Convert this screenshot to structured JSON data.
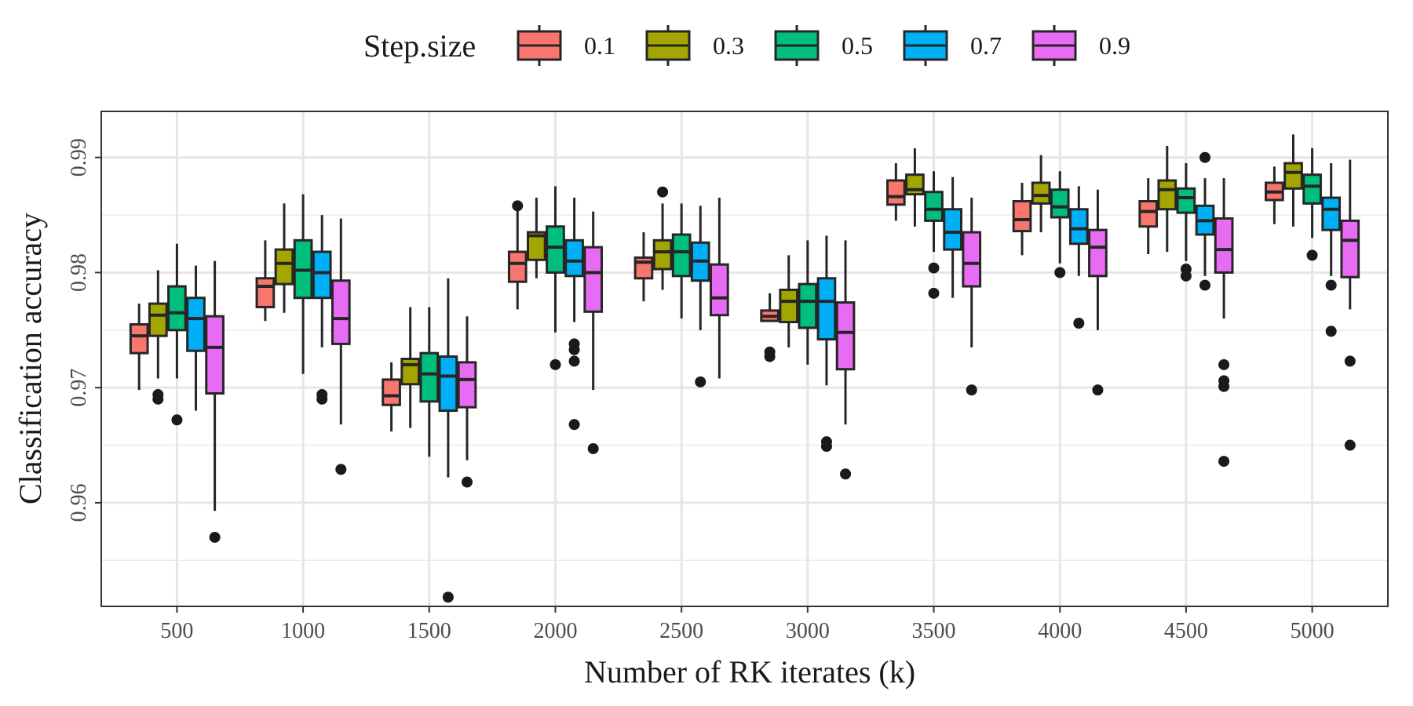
{
  "chart_data": {
    "type": "boxplot",
    "title": "",
    "xlabel": "Number of RK iterates (k)",
    "ylabel": "Classification accuracy",
    "ylim": [
      0.951,
      0.994
    ],
    "yticks": [
      0.96,
      0.97,
      0.98,
      0.99
    ],
    "ytick_labels": [
      "0.96",
      "0.97",
      "0.98",
      "0.99"
    ],
    "categories": [
      "500",
      "1000",
      "1500",
      "2000",
      "2500",
      "3000",
      "3500",
      "4000",
      "4500",
      "5000"
    ],
    "grid": true,
    "legend": {
      "title": "Step.size",
      "position": "top",
      "entries": [
        {
          "name": "0.1",
          "color": "#F8766D"
        },
        {
          "name": "0.3",
          "color": "#A3A500"
        },
        {
          "name": "0.5",
          "color": "#00BF7D"
        },
        {
          "name": "0.7",
          "color": "#00B0F6"
        },
        {
          "name": "0.9",
          "color": "#E76BF3"
        }
      ]
    },
    "series": [
      {
        "name": "0.1",
        "color": "#F8766D",
        "boxes": [
          {
            "lw": 0.9698,
            "q1": 0.973,
            "med": 0.9745,
            "q3": 0.9755,
            "uw": 0.9773,
            "outliers": []
          },
          {
            "lw": 0.9758,
            "q1": 0.977,
            "med": 0.9788,
            "q3": 0.9795,
            "uw": 0.9828,
            "outliers": []
          },
          {
            "lw": 0.9662,
            "q1": 0.9685,
            "med": 0.9693,
            "q3": 0.9707,
            "uw": 0.9722,
            "outliers": []
          },
          {
            "lw": 0.9768,
            "q1": 0.9792,
            "med": 0.9808,
            "q3": 0.9818,
            "uw": 0.9855,
            "outliers": [
              0.9858
            ]
          },
          {
            "lw": 0.9775,
            "q1": 0.9795,
            "med": 0.9809,
            "q3": 0.9813,
            "uw": 0.9835,
            "outliers": []
          },
          {
            "lw": 0.9757,
            "q1": 0.9758,
            "med": 0.9762,
            "q3": 0.9767,
            "uw": 0.9782,
            "outliers": [
              0.9727,
              0.9731
            ]
          },
          {
            "lw": 0.9845,
            "q1": 0.9859,
            "med": 0.9866,
            "q3": 0.988,
            "uw": 0.9895,
            "outliers": []
          },
          {
            "lw": 0.9815,
            "q1": 0.9836,
            "med": 0.9846,
            "q3": 0.9862,
            "uw": 0.9878,
            "outliers": []
          },
          {
            "lw": 0.9816,
            "q1": 0.984,
            "med": 0.9853,
            "q3": 0.9862,
            "uw": 0.9882,
            "outliers": []
          },
          {
            "lw": 0.9842,
            "q1": 0.9863,
            "med": 0.987,
            "q3": 0.9878,
            "uw": 0.9892,
            "outliers": []
          }
        ]
      },
      {
        "name": "0.3",
        "color": "#A3A500",
        "boxes": [
          {
            "lw": 0.9708,
            "q1": 0.9745,
            "med": 0.9763,
            "q3": 0.9773,
            "uw": 0.9802,
            "outliers": [
              0.969,
              0.9694
            ]
          },
          {
            "lw": 0.9765,
            "q1": 0.979,
            "med": 0.9808,
            "q3": 0.982,
            "uw": 0.986,
            "outliers": []
          },
          {
            "lw": 0.9665,
            "q1": 0.9703,
            "med": 0.972,
            "q3": 0.9725,
            "uw": 0.977,
            "outliers": []
          },
          {
            "lw": 0.9795,
            "q1": 0.9811,
            "med": 0.9832,
            "q3": 0.9835,
            "uw": 0.9865,
            "outliers": []
          },
          {
            "lw": 0.9785,
            "q1": 0.9803,
            "med": 0.9818,
            "q3": 0.9828,
            "uw": 0.986,
            "outliers": [
              0.987
            ]
          },
          {
            "lw": 0.9735,
            "q1": 0.9757,
            "med": 0.9775,
            "q3": 0.9785,
            "uw": 0.9815,
            "outliers": []
          },
          {
            "lw": 0.984,
            "q1": 0.9868,
            "med": 0.9872,
            "q3": 0.9885,
            "uw": 0.9908,
            "outliers": []
          },
          {
            "lw": 0.9835,
            "q1": 0.986,
            "med": 0.9867,
            "q3": 0.9878,
            "uw": 0.9902,
            "outliers": []
          },
          {
            "lw": 0.9818,
            "q1": 0.9855,
            "med": 0.9872,
            "q3": 0.988,
            "uw": 0.991,
            "outliers": []
          },
          {
            "lw": 0.984,
            "q1": 0.9873,
            "med": 0.9887,
            "q3": 0.9895,
            "uw": 0.992,
            "outliers": []
          }
        ]
      },
      {
        "name": "0.5",
        "color": "#00BF7D",
        "boxes": [
          {
            "lw": 0.9708,
            "q1": 0.975,
            "med": 0.9765,
            "q3": 0.9788,
            "uw": 0.9825,
            "outliers": [
              0.9672
            ]
          },
          {
            "lw": 0.9712,
            "q1": 0.9778,
            "med": 0.9802,
            "q3": 0.9828,
            "uw": 0.9868,
            "outliers": []
          },
          {
            "lw": 0.964,
            "q1": 0.9688,
            "med": 0.9712,
            "q3": 0.973,
            "uw": 0.977,
            "outliers": []
          },
          {
            "lw": 0.9748,
            "q1": 0.98,
            "med": 0.9822,
            "q3": 0.984,
            "uw": 0.9875,
            "outliers": [
              0.972
            ]
          },
          {
            "lw": 0.976,
            "q1": 0.9797,
            "med": 0.9818,
            "q3": 0.9833,
            "uw": 0.986,
            "outliers": []
          },
          {
            "lw": 0.972,
            "q1": 0.9752,
            "med": 0.9775,
            "q3": 0.979,
            "uw": 0.9828,
            "outliers": []
          },
          {
            "lw": 0.9818,
            "q1": 0.9845,
            "med": 0.9855,
            "q3": 0.987,
            "uw": 0.9888,
            "outliers": [
              0.9782,
              0.9804
            ]
          },
          {
            "lw": 0.9808,
            "q1": 0.9848,
            "med": 0.9857,
            "q3": 0.9872,
            "uw": 0.9888,
            "outliers": [
              0.98
            ]
          },
          {
            "lw": 0.981,
            "q1": 0.9852,
            "med": 0.9865,
            "q3": 0.9873,
            "uw": 0.9895,
            "outliers": [
              0.9797,
              0.9803
            ]
          },
          {
            "lw": 0.983,
            "q1": 0.986,
            "med": 0.9875,
            "q3": 0.9885,
            "uw": 0.9908,
            "outliers": [
              0.9815
            ]
          }
        ]
      },
      {
        "name": "0.7",
        "color": "#00B0F6",
        "boxes": [
          {
            "lw": 0.968,
            "q1": 0.9732,
            "med": 0.976,
            "q3": 0.9778,
            "uw": 0.9806,
            "outliers": []
          },
          {
            "lw": 0.9735,
            "q1": 0.9778,
            "med": 0.98,
            "q3": 0.9818,
            "uw": 0.985,
            "outliers": [
              0.969,
              0.9694
            ]
          },
          {
            "lw": 0.9622,
            "q1": 0.968,
            "med": 0.971,
            "q3": 0.9727,
            "uw": 0.9795,
            "outliers": [
              0.9518
            ]
          },
          {
            "lw": 0.9757,
            "q1": 0.9797,
            "med": 0.981,
            "q3": 0.9828,
            "uw": 0.9865,
            "outliers": [
              0.9668,
              0.9723,
              0.9733,
              0.9738
            ]
          },
          {
            "lw": 0.975,
            "q1": 0.9793,
            "med": 0.981,
            "q3": 0.9826,
            "uw": 0.9858,
            "outliers": [
              0.9705
            ]
          },
          {
            "lw": 0.9702,
            "q1": 0.9742,
            "med": 0.9775,
            "q3": 0.9795,
            "uw": 0.9832,
            "outliers": [
              0.9649,
              0.9653
            ]
          },
          {
            "lw": 0.9778,
            "q1": 0.982,
            "med": 0.9835,
            "q3": 0.9855,
            "uw": 0.9883,
            "outliers": []
          },
          {
            "lw": 0.9797,
            "q1": 0.9825,
            "med": 0.9838,
            "q3": 0.9855,
            "uw": 0.9875,
            "outliers": [
              0.9756
            ]
          },
          {
            "lw": 0.9797,
            "q1": 0.9833,
            "med": 0.9845,
            "q3": 0.9858,
            "uw": 0.9882,
            "outliers": [
              0.9789,
              0.99
            ]
          },
          {
            "lw": 0.9797,
            "q1": 0.9837,
            "med": 0.9855,
            "q3": 0.9865,
            "uw": 0.9895,
            "outliers": [
              0.9749,
              0.9789
            ]
          }
        ]
      },
      {
        "name": "0.9",
        "color": "#E76BF3",
        "boxes": [
          {
            "lw": 0.9593,
            "q1": 0.9695,
            "med": 0.9735,
            "q3": 0.9762,
            "uw": 0.981,
            "outliers": [
              0.957
            ]
          },
          {
            "lw": 0.9668,
            "q1": 0.9738,
            "med": 0.976,
            "q3": 0.9793,
            "uw": 0.9847,
            "outliers": [
              0.9629
            ]
          },
          {
            "lw": 0.9637,
            "q1": 0.9683,
            "med": 0.9707,
            "q3": 0.9722,
            "uw": 0.9762,
            "outliers": [
              0.9618
            ]
          },
          {
            "lw": 0.9698,
            "q1": 0.9766,
            "med": 0.98,
            "q3": 0.9822,
            "uw": 0.9853,
            "outliers": [
              0.9647
            ]
          },
          {
            "lw": 0.9708,
            "q1": 0.9763,
            "med": 0.9778,
            "q3": 0.9807,
            "uw": 0.9865,
            "outliers": []
          },
          {
            "lw": 0.9668,
            "q1": 0.9716,
            "med": 0.9748,
            "q3": 0.9774,
            "uw": 0.9828,
            "outliers": [
              0.9625
            ]
          },
          {
            "lw": 0.9735,
            "q1": 0.9788,
            "med": 0.9808,
            "q3": 0.9835,
            "uw": 0.9865,
            "outliers": [
              0.9698
            ]
          },
          {
            "lw": 0.975,
            "q1": 0.9797,
            "med": 0.9822,
            "q3": 0.9837,
            "uw": 0.9872,
            "outliers": [
              0.9698
            ]
          },
          {
            "lw": 0.976,
            "q1": 0.98,
            "med": 0.982,
            "q3": 0.9847,
            "uw": 0.9882,
            "outliers": [
              0.9636,
              0.9701,
              0.9706,
              0.972
            ]
          },
          {
            "lw": 0.9768,
            "q1": 0.9796,
            "med": 0.9828,
            "q3": 0.9845,
            "uw": 0.9898,
            "outliers": [
              0.965,
              0.9723
            ]
          }
        ]
      }
    ]
  }
}
